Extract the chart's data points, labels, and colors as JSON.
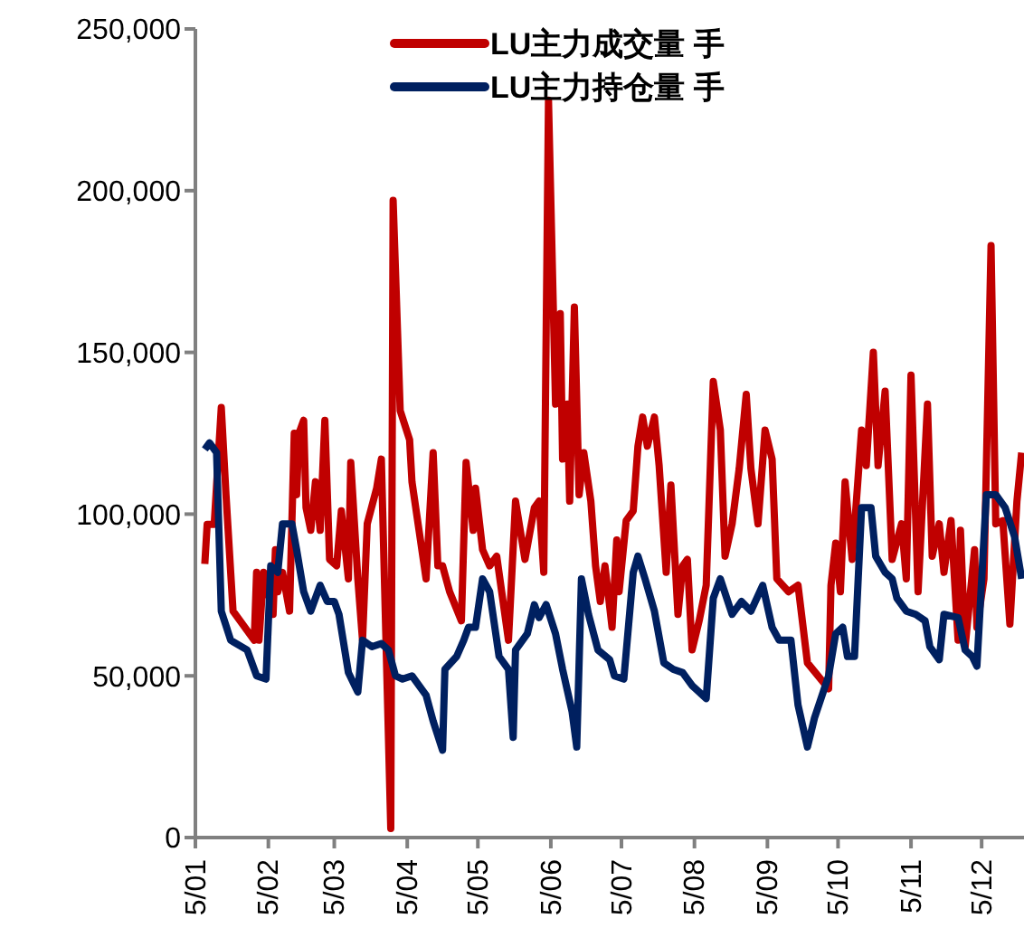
{
  "chart_data": {
    "type": "line",
    "legend": "top",
    "grid": false,
    "marker": "none",
    "line_style": "solid",
    "xlim": [
      "--01-01",
      "--12-19"
    ],
    "xticks": [
      {
        "value": "--01-01",
        "label": "5/01"
      },
      {
        "value": "--02-01",
        "label": "5/02"
      },
      {
        "value": "--03-01",
        "label": "5/03"
      },
      {
        "value": "--04-01",
        "label": "5/04"
      },
      {
        "value": "--05-01",
        "label": "5/05"
      },
      {
        "value": "--06-01",
        "label": "5/06"
      },
      {
        "value": "--07-01",
        "label": "5/07"
      },
      {
        "value": "--08-01",
        "label": "5/08"
      },
      {
        "value": "--09-01",
        "label": "5/09"
      },
      {
        "value": "--10-01",
        "label": "5/10"
      },
      {
        "value": "--11-01",
        "label": "5/11"
      },
      {
        "value": "--12-01",
        "label": "5/12"
      }
    ],
    "ylim": [
      0,
      250000
    ],
    "yticks": [
      {
        "value": 0,
        "label": "0"
      },
      {
        "value": 50000,
        "label": "50,000"
      },
      {
        "value": 100000,
        "label": "100,000"
      },
      {
        "value": 150000,
        "label": "150,000"
      },
      {
        "value": 200000,
        "label": "200,000"
      },
      {
        "value": 250000,
        "label": "250,000"
      }
    ],
    "series": [
      {
        "name": "LU主力成交量 手",
        "color": "#c00000",
        "x": [
          "--01-05",
          "--01-06",
          "--01-09",
          "--01-12",
          "--01-14",
          "--01-17",
          "--01-26",
          "--01-27",
          "--01-28",
          "--01-30",
          "--02-03",
          "--02-04",
          "--02-05",
          "--02-07",
          "--02-10",
          "--02-12",
          "--02-13",
          "--02-14",
          "--02-16",
          "--02-17",
          "--02-19",
          "--02-21",
          "--02-23",
          "--02-25",
          "--02-27",
          "--03-02",
          "--03-04",
          "--03-07",
          "--03-08",
          "--03-11",
          "--03-13",
          "--03-15",
          "--03-19",
          "--03-21",
          "--03-25",
          "--03-26",
          "--03-29",
          "--04-02",
          "--04-03",
          "--04-06",
          "--04-09",
          "--04-12",
          "--04-14",
          "--04-16",
          "--04-19",
          "--04-24",
          "--04-26",
          "--04-29",
          "--04-30",
          "--05-03",
          "--05-06",
          "--05-09",
          "--05-14",
          "--05-17",
          "--05-21",
          "--05-25",
          "--05-27",
          "--05-29",
          "--05-31",
          "--06-03",
          "--06-05",
          "--06-06",
          "--06-08",
          "--06-09",
          "--06-11",
          "--06-13",
          "--06-15",
          "--06-18",
          "--06-20",
          "--06-22",
          "--06-24",
          "--06-27",
          "--06-29",
          "--06-30",
          "--07-03",
          "--07-06",
          "--07-08",
          "--07-10",
          "--07-12",
          "--07-15",
          "--07-17",
          "--07-20",
          "--07-22",
          "--07-25",
          "--07-27",
          "--07-29",
          "--07-31",
          "--08-03",
          "--08-06",
          "--08-09",
          "--08-12",
          "--08-14",
          "--08-17",
          "--08-20",
          "--08-23",
          "--08-25",
          "--08-28",
          "--08-31",
          "--09-03",
          "--09-05",
          "--09-10",
          "--09-14",
          "--09-18",
          "--09-27",
          "--09-28",
          "--09-30",
          "--10-02",
          "--10-04",
          "--10-07",
          "--10-11",
          "--10-13",
          "--10-16",
          "--10-18",
          "--10-21",
          "--10-24",
          "--10-28",
          "--10-30",
          "--11-01",
          "--11-04",
          "--11-08",
          "--11-10",
          "--11-13",
          "--11-15",
          "--11-18",
          "--11-21",
          "--11-22",
          "--11-24",
          "--11-28",
          "--11-29",
          "--12-02",
          "--12-05",
          "--12-07",
          "--12-10",
          "--12-13",
          "--12-16",
          "--12-18"
        ],
        "values": [
          84600,
          96800,
          96800,
          133000,
          106000,
          70000,
          61000,
          82000,
          61000,
          82000,
          69000,
          89000,
          76000,
          82000,
          70000,
          125000,
          106000,
          125000,
          129000,
          102000,
          95000,
          110000,
          95000,
          129000,
          86000,
          84000,
          101000,
          80000,
          116000,
          80000,
          61000,
          97000,
          108000,
          117000,
          2800,
          197000,
          132000,
          123000,
          110000,
          95000,
          80000,
          119000,
          84000,
          84000,
          76000,
          67000,
          116000,
          95000,
          108000,
          89000,
          84000,
          87000,
          61000,
          104000,
          86000,
          102000,
          104000,
          82000,
          228000,
          134000,
          162000,
          117000,
          134000,
          104000,
          164000,
          106000,
          119000,
          104000,
          84000,
          73000,
          84000,
          65000,
          92000,
          76000,
          98000,
          101000,
          121000,
          130000,
          121000,
          130000,
          115000,
          82000,
          109000,
          69000,
          84000,
          86000,
          58000,
          67000,
          78000,
          141000,
          126000,
          87000,
          97000,
          114000,
          137000,
          114000,
          97000,
          126000,
          117000,
          80000,
          76000,
          78000,
          54000,
          46000,
          78000,
          91000,
          76000,
          110000,
          86000,
          126000,
          115000,
          150000,
          115000,
          138000,
          86000,
          97000,
          80000,
          143000,
          76000,
          134000,
          87000,
          97000,
          82000,
          98000,
          61000,
          95000,
          59000,
          89000,
          65000,
          80000,
          183000,
          97000,
          98000,
          66000,
          104000,
          119000
        ]
      },
      {
        "name": "LU主力持仓量 手",
        "color": "#002060",
        "x": [
          "--01-05",
          "--01-07",
          "--01-10",
          "--01-12",
          "--01-16",
          "--01-23",
          "--01-27",
          "--01-31",
          "--02-02",
          "--02-05",
          "--02-07",
          "--02-11",
          "--02-13",
          "--02-16",
          "--02-19",
          "--02-23",
          "--02-26",
          "--03-01",
          "--03-03",
          "--03-07",
          "--03-11",
          "--03-13",
          "--03-17",
          "--03-21",
          "--03-24",
          "--03-27",
          "--03-30",
          "--04-03",
          "--04-09",
          "--04-12",
          "--04-16",
          "--04-17",
          "--04-22",
          "--04-25",
          "--04-27",
          "--04-30",
          "--05-03",
          "--05-06",
          "--05-10",
          "--05-14",
          "--05-16",
          "--05-17",
          "--05-22",
          "--05-25",
          "--05-27",
          "--05-30",
          "--06-03",
          "--06-06",
          "--06-10",
          "--06-12",
          "--06-14",
          "--06-17",
          "--06-21",
          "--06-26",
          "--06-28",
          "--07-02",
          "--07-06",
          "--07-08",
          "--07-11",
          "--07-15",
          "--07-19",
          "--07-23",
          "--07-27",
          "--07-31",
          "--08-06",
          "--08-09",
          "--08-12",
          "--08-17",
          "--08-21",
          "--08-25",
          "--08-30",
          "--09-03",
          "--09-06",
          "--09-11",
          "--09-14",
          "--09-18",
          "--09-21",
          "--09-27",
          "--09-30",
          "--10-03",
          "--10-05",
          "--10-08",
          "--10-11",
          "--10-15",
          "--10-17",
          "--10-21",
          "--10-24",
          "--10-26",
          "--10-30",
          "--11-03",
          "--11-07",
          "--11-09",
          "--11-13",
          "--11-15",
          "--11-21",
          "--11-24",
          "--11-27",
          "--11-29",
          "--12-03",
          "--12-07",
          "--12-11",
          "--12-15",
          "--12-18"
        ],
        "values": [
          120000,
          122000,
          119000,
          70000,
          61000,
          58000,
          50000,
          49000,
          84000,
          82000,
          97000,
          97000,
          89000,
          76000,
          70000,
          78000,
          73000,
          73000,
          69000,
          51000,
          45000,
          61000,
          59000,
          60000,
          58000,
          50000,
          49000,
          50000,
          44000,
          36000,
          27000,
          52000,
          56000,
          61000,
          65000,
          65000,
          80000,
          76000,
          56000,
          52000,
          31000,
          58000,
          63000,
          72000,
          68000,
          72000,
          63000,
          52000,
          39000,
          28000,
          80000,
          69000,
          58000,
          55000,
          50000,
          49000,
          82000,
          87000,
          80000,
          70000,
          54000,
          52000,
          51000,
          47000,
          43000,
          74000,
          80000,
          69000,
          73000,
          70000,
          78000,
          65000,
          61000,
          61000,
          41000,
          28000,
          37000,
          50000,
          63000,
          65000,
          56000,
          56000,
          102000,
          102000,
          87000,
          82000,
          80000,
          74000,
          70000,
          69000,
          67000,
          59000,
          55000,
          69000,
          68000,
          58000,
          56000,
          53000,
          106000,
          106000,
          102000,
          93000,
          80000
        ]
      }
    ]
  }
}
